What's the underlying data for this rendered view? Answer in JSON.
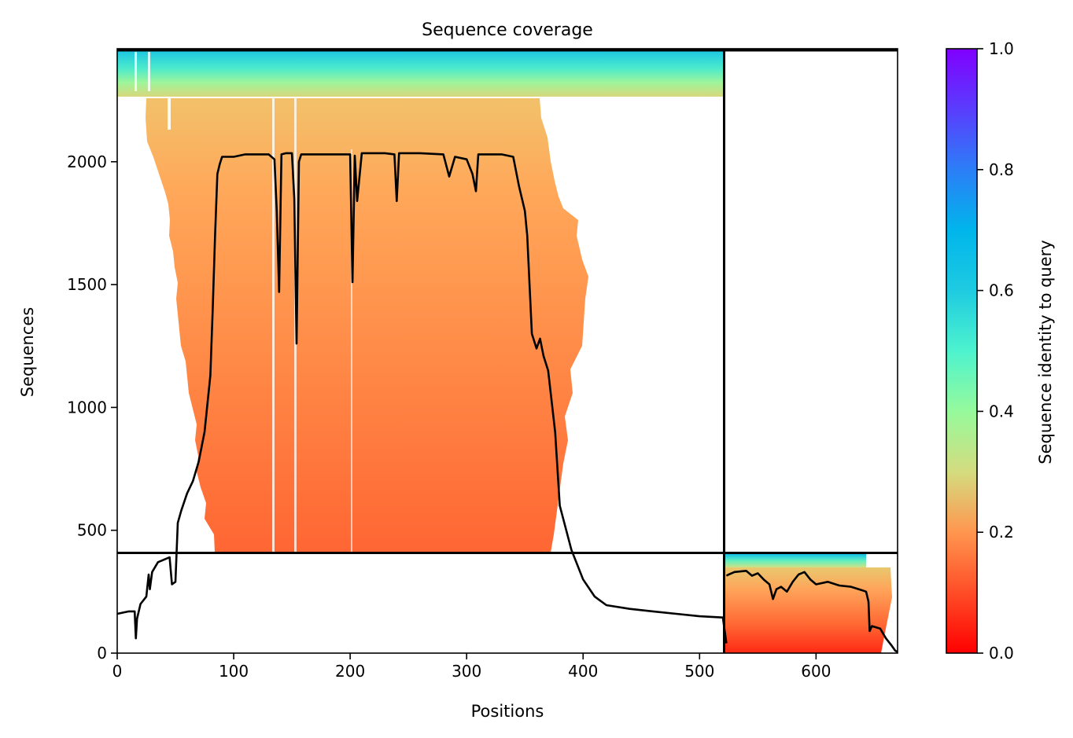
{
  "chart_data": {
    "type": "heatmap",
    "title": "Sequence coverage",
    "xlabel": "Positions",
    "ylabel": "Sequences",
    "xlim": [
      0,
      670
    ],
    "ylim": [
      0,
      2460
    ],
    "x_ticks": [
      0,
      100,
      200,
      300,
      400,
      500,
      600
    ],
    "y_ticks": [
      0,
      500,
      1000,
      1500,
      2000
    ],
    "domain_boundary": {
      "x": 523,
      "y": 410
    },
    "colorbar": {
      "label": "Sequence identity to query",
      "range": [
        0.0,
        1.0
      ],
      "ticks": [
        "0.0",
        "0.2",
        "0.4",
        "0.6",
        "0.8",
        "1.0"
      ],
      "colormap": "rainbow"
    },
    "coverage_line": {
      "color": "#000000",
      "x": [
        0,
        10,
        15,
        16,
        17,
        20,
        25,
        27,
        28,
        30,
        35,
        45,
        47,
        50,
        52,
        55,
        60,
        65,
        70,
        75,
        80,
        82,
        84,
        86,
        88,
        90,
        100,
        110,
        120,
        130,
        135,
        137,
        139,
        141,
        145,
        150,
        152,
        154,
        156,
        158,
        160,
        170,
        180,
        190,
        200,
        202,
        204,
        206,
        210,
        230,
        238,
        240,
        242,
        260,
        280,
        285,
        290,
        300,
        305,
        308,
        310,
        320,
        330,
        340,
        345,
        350,
        352,
        356,
        360,
        363,
        366,
        370,
        376,
        380,
        390,
        400,
        410,
        420,
        440,
        460,
        480,
        500,
        520,
        523
      ],
      "y": [
        160,
        170,
        170,
        60,
        140,
        200,
        230,
        320,
        260,
        330,
        370,
        390,
        280,
        290,
        530,
        580,
        650,
        700,
        780,
        900,
        1130,
        1400,
        1700,
        1950,
        1990,
        2020,
        2020,
        2030,
        2030,
        2030,
        2010,
        1800,
        1470,
        2030,
        2035,
        2035,
        1850,
        1260,
        2000,
        2030,
        2030,
        2030,
        2030,
        2030,
        2030,
        1510,
        2025,
        1840,
        2035,
        2035,
        2030,
        1840,
        2035,
        2035,
        2030,
        1940,
        2020,
        2010,
        1950,
        1880,
        2030,
        2030,
        2030,
        2020,
        1900,
        1800,
        1700,
        1300,
        1240,
        1280,
        1210,
        1150,
        900,
        600,
        420,
        300,
        230,
        195,
        180,
        170,
        160,
        150,
        145,
        40
      ],
      "x2": [
        523,
        525,
        530,
        540,
        545,
        550,
        555,
        560,
        563,
        566,
        570,
        575,
        580,
        585,
        590,
        595,
        600,
        610,
        620,
        630,
        640,
        643,
        645,
        646,
        648,
        655,
        660,
        665,
        668,
        670
      ],
      "y2": [
        315,
        320,
        330,
        335,
        315,
        325,
        300,
        280,
        220,
        260,
        270,
        250,
        290,
        320,
        330,
        300,
        280,
        290,
        275,
        270,
        255,
        250,
        210,
        90,
        110,
        100,
        60,
        30,
        10,
        5
      ]
    }
  }
}
